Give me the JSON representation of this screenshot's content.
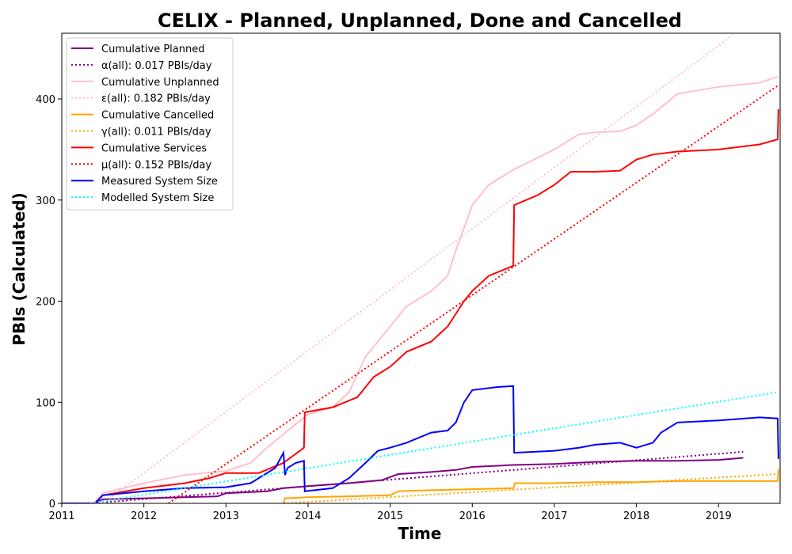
{
  "chart_data": {
    "type": "line",
    "title": "CELIX - Planned, Unplanned, Done  and Cancelled",
    "xlabel": "Time",
    "ylabel": "PBIs (Calculated)",
    "xlim": [
      2011.0,
      2019.75
    ],
    "ylim": [
      0,
      465
    ],
    "x_ticks": [
      2011,
      2012,
      2013,
      2014,
      2015,
      2016,
      2017,
      2018,
      2019
    ],
    "x_tick_labels": [
      "2011",
      "2012",
      "2013",
      "2014",
      "2015",
      "2016",
      "2017",
      "2018",
      "2019"
    ],
    "y_ticks": [
      0,
      100,
      200,
      300,
      400
    ],
    "y_tick_labels": [
      "0",
      "100",
      "200",
      "300",
      "400"
    ],
    "grid": false,
    "legend_position": "top-left",
    "series": [
      {
        "name": "Cumulative Planned",
        "color": "#800080",
        "style": "solid",
        "x": [
          2011.0,
          2011.4,
          2011.5,
          2012.0,
          2012.5,
          2012.9,
          2013.0,
          2013.5,
          2013.7,
          2014.0,
          2014.5,
          2014.9,
          2015.1,
          2015.5,
          2015.8,
          2016.0,
          2016.5,
          2017.0,
          2017.5,
          2018.0,
          2018.5,
          2019.0,
          2019.3
        ],
        "y": [
          0,
          0,
          4,
          5,
          6,
          7,
          10,
          12,
          15,
          17,
          20,
          23,
          29,
          31,
          33,
          36,
          38,
          39,
          41,
          42,
          42,
          43,
          45
        ]
      },
      {
        "name": "α(all): 0.017 PBIs/day",
        "color": "#800080",
        "style": "dotted",
        "x": [
          2011.35,
          2019.3
        ],
        "y": [
          0,
          51
        ]
      },
      {
        "name": "Cumulative Unplanned",
        "color": "#ffc0cb",
        "style": "solid",
        "x": [
          2011.0,
          2011.4,
          2011.5,
          2012.0,
          2012.5,
          2013.0,
          2013.3,
          2013.5,
          2013.8,
          2014.0,
          2014.3,
          2014.5,
          2014.7,
          2015.0,
          2015.2,
          2015.5,
          2015.7,
          2015.8,
          2016.0,
          2016.2,
          2016.5,
          2017.0,
          2017.3,
          2017.5,
          2017.8,
          2018.0,
          2018.2,
          2018.5,
          2019.0,
          2019.5,
          2019.72
        ],
        "y": [
          0,
          0,
          10,
          20,
          28,
          32,
          40,
          55,
          75,
          88,
          95,
          110,
          145,
          175,
          195,
          210,
          225,
          250,
          295,
          315,
          330,
          350,
          365,
          367,
          368,
          374,
          385,
          405,
          412,
          416,
          422
        ]
      },
      {
        "name": "ε(all): 0.182 PBIs/day",
        "color": "#ffc0cb",
        "style": "dotted",
        "x": [
          2011.5,
          2019.2
        ],
        "y": [
          0,
          465
        ]
      },
      {
        "name": "Cumulative Cancelled",
        "color": "#ffa500",
        "style": "solid",
        "x": [
          2013.7,
          2013.72,
          2014.0,
          2014.5,
          2015.0,
          2015.1,
          2015.5,
          2016.0,
          2016.5,
          2016.52,
          2017.0,
          2017.5,
          2018.0,
          2018.5,
          2019.0,
          2019.72,
          2019.73
        ],
        "y": [
          0,
          5,
          6,
          7,
          8,
          12,
          13,
          14,
          15,
          20,
          20,
          21,
          21,
          22,
          22,
          22,
          34
        ]
      },
      {
        "name": "γ(all): 0.011 PBIs/day",
        "color": "#ffa500",
        "style": "dotted",
        "x": [
          2013.7,
          2019.72
        ],
        "y": [
          0,
          29
        ]
      },
      {
        "name": "Cumulative Services",
        "color": "#ff0000",
        "style": "solid",
        "x": [
          2011.0,
          2011.4,
          2011.5,
          2012.0,
          2012.5,
          2012.8,
          2013.0,
          2013.4,
          2013.7,
          2013.95,
          2013.96,
          2014.3,
          2014.6,
          2014.8,
          2015.0,
          2015.2,
          2015.5,
          2015.7,
          2015.9,
          2016.0,
          2016.2,
          2016.5,
          2016.51,
          2016.8,
          2017.0,
          2017.2,
          2017.5,
          2017.8,
          2018.0,
          2018.2,
          2018.5,
          2019.0,
          2019.5,
          2019.72,
          2019.73
        ],
        "y": [
          0,
          0,
          8,
          15,
          20,
          25,
          30,
          30,
          40,
          55,
          90,
          95,
          105,
          125,
          135,
          150,
          160,
          175,
          200,
          210,
          225,
          235,
          295,
          305,
          315,
          328,
          328,
          329,
          340,
          345,
          348,
          350,
          355,
          360,
          390
        ]
      },
      {
        "name": "μ(all): 0.152 PBIs/day",
        "color": "#ff0000",
        "style": "dotted",
        "x": [
          2012.3,
          2019.72
        ],
        "y": [
          0,
          413
        ]
      },
      {
        "name": "Measured System Size",
        "color": "#0000ff",
        "style": "solid",
        "x": [
          2011.0,
          2011.4,
          2011.5,
          2012.0,
          2012.5,
          2013.0,
          2013.3,
          2013.6,
          2013.7,
          2013.72,
          2013.75,
          2013.85,
          2013.95,
          2013.96,
          2014.3,
          2014.5,
          2014.7,
          2014.85,
          2015.0,
          2015.2,
          2015.5,
          2015.7,
          2015.8,
          2015.9,
          2016.0,
          2016.3,
          2016.5,
          2016.51,
          2017.0,
          2017.3,
          2017.5,
          2017.8,
          2018.0,
          2018.2,
          2018.3,
          2018.5,
          2019.0,
          2019.5,
          2019.72,
          2019.73
        ],
        "y": [
          0,
          0,
          8,
          12,
          15,
          16,
          20,
          35,
          50,
          28,
          35,
          40,
          42,
          12,
          15,
          25,
          40,
          52,
          55,
          60,
          70,
          72,
          80,
          100,
          112,
          115,
          116,
          50,
          52,
          55,
          58,
          60,
          55,
          60,
          70,
          80,
          82,
          85,
          84,
          44
        ]
      },
      {
        "name": "Modelled System Size",
        "color": "#00ffff",
        "style": "dotted",
        "x": [
          2011.35,
          2019.72
        ],
        "y": [
          0,
          110
        ]
      }
    ]
  }
}
